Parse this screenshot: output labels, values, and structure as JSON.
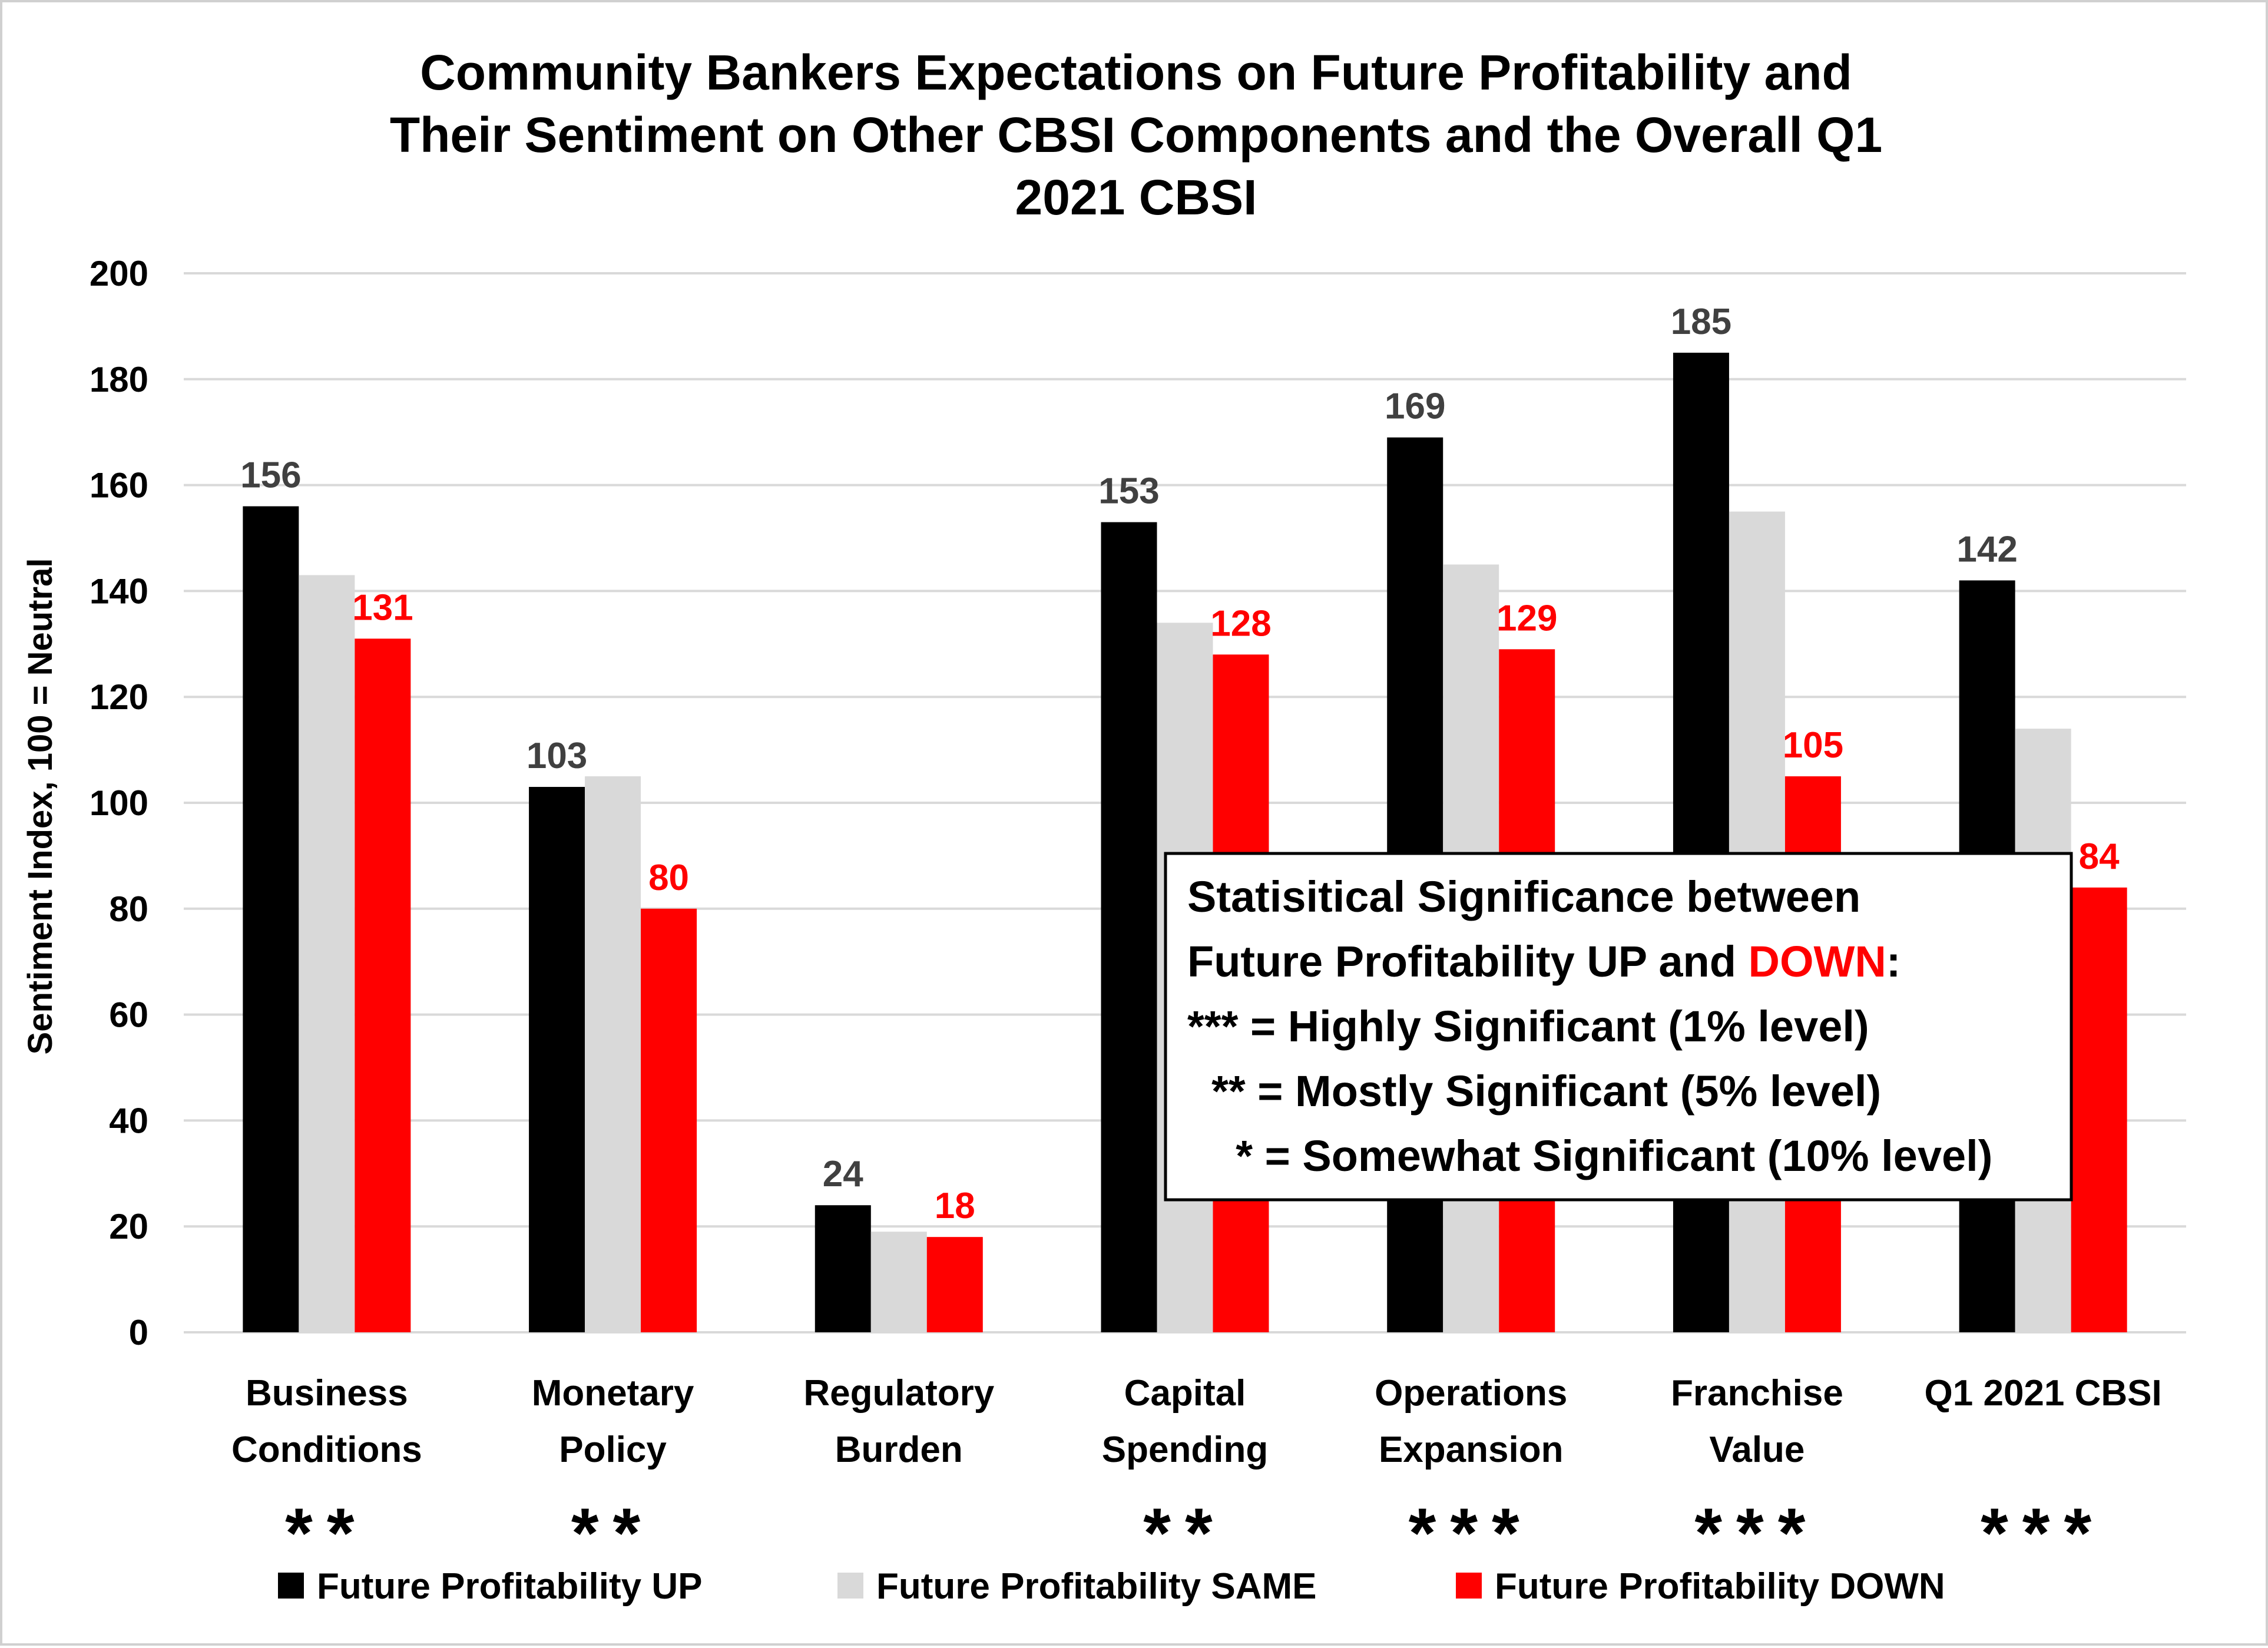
{
  "chart_data": {
    "type": "bar",
    "title": [
      "Community Bankers Expectations on Future Profitability and",
      "Their Sentiment on Other CBSI Components and the Overall Q1",
      "2021 CBSI"
    ],
    "ylabel": "Sentiment Index, 100 = Neutral",
    "ylim": [
      0,
      200
    ],
    "yticks": [
      "0",
      "20",
      "40",
      "60",
      "80",
      "100",
      "120",
      "140",
      "160",
      "180",
      "200"
    ],
    "grid": true,
    "legend_position": "bottom",
    "categories": [
      [
        "Business",
        "Conditions"
      ],
      [
        "Monetary",
        "Policy"
      ],
      [
        "Regulatory",
        "Burden"
      ],
      [
        "Capital",
        "Spending"
      ],
      [
        "Operations",
        "Expansion"
      ],
      [
        "Franchise",
        "Value"
      ],
      [
        "Q1 2021 CBSI"
      ]
    ],
    "significance": [
      "**",
      "**",
      "",
      "**",
      "***",
      "***",
      "***"
    ],
    "series": [
      {
        "name": "Future Profitability UP",
        "color": "#000000",
        "values": [
          156,
          103,
          24,
          153,
          169,
          185,
          142
        ],
        "labels": [
          "156",
          "103",
          "24",
          "153",
          "169",
          "185",
          "142"
        ],
        "label_color": "#404040"
      },
      {
        "name": "Future Profitability SAME",
        "color": "#d9d9d9",
        "values": [
          143,
          105,
          19,
          134,
          145,
          155,
          114
        ],
        "labels": [
          "",
          "",
          "",
          "",
          "",
          "",
          ""
        ],
        "label_color": "#404040"
      },
      {
        "name": "Future Profitability DOWN",
        "color": "#ff0000",
        "values": [
          131,
          80,
          18,
          128,
          129,
          105,
          84
        ],
        "labels": [
          "131",
          "80",
          "18",
          "128",
          "129",
          "105",
          "84"
        ],
        "label_color": "#ff0000"
      }
    ],
    "annotation": {
      "lines": [
        [
          {
            "text": "Statisitical Significance between",
            "color": "#000000"
          }
        ],
        [
          {
            "text": "Future Profitability UP and ",
            "color": "#000000"
          },
          {
            "text": "DOWN",
            "color": "#ff0000"
          },
          {
            "text": ":",
            "color": "#000000"
          }
        ],
        [
          {
            "text": "*** = Highly Significant (1% level)",
            "color": "#000000"
          }
        ],
        [
          {
            "text": "  ** = Mostly Significant (5% level)",
            "color": "#000000"
          }
        ],
        [
          {
            "text": "    * = Somewhat Significant (10% level)",
            "color": "#000000"
          }
        ]
      ]
    }
  }
}
